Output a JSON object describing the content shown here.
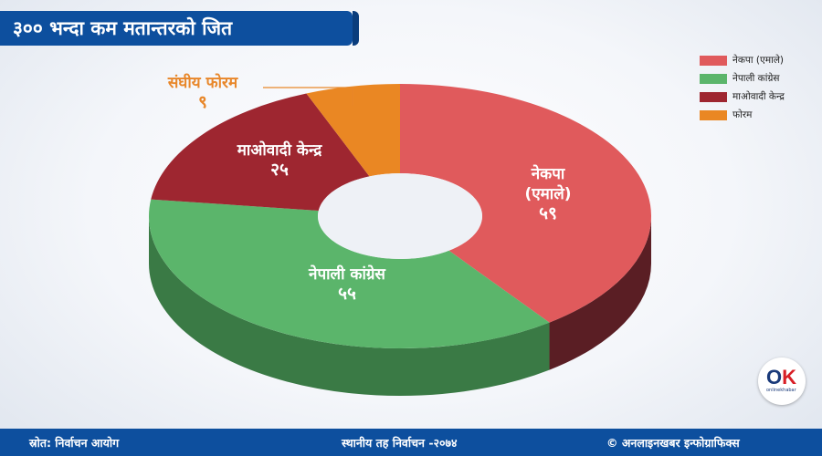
{
  "title": "३०० भन्दा कम मतान्तरको जित",
  "chart_data": {
    "type": "pie",
    "title": "३०० भन्दा कम मतान्तरको जित",
    "categories": [
      "नेकपा (एमाले)",
      "नेपाली कांग्रेस",
      "माओवादी केन्द्र",
      "फोरम"
    ],
    "series": [
      {
        "values": [
          59,
          55,
          25,
          9
        ],
        "value_labels": [
          "५९",
          "५५",
          "२५",
          "९"
        ]
      }
    ],
    "slice_labels": [
      {
        "lines": [
          "नेकपा",
          "(एमाले)"
        ],
        "value": "५९"
      },
      {
        "lines": [
          "नेपाली कांग्रेस"
        ],
        "value": "५५"
      },
      {
        "lines": [
          "माओवादी केन्द्र"
        ],
        "value": "२५"
      },
      {
        "lines": [
          "संघीय फोरम"
        ],
        "value": "९"
      }
    ],
    "colors": [
      "#e05a5c",
      "#5bb56b",
      "#9e2630",
      "#ea8723"
    ],
    "side_colors": [
      "#5a1e24",
      "#3a7a45",
      "#6d1a22",
      "#a55d14"
    ],
    "legend_position": "top-right",
    "style": "3d-donut"
  },
  "legend": [
    {
      "label": "नेकपा (एमाले)",
      "color": "#e05a5c"
    },
    {
      "label": "नेपाली कांग्रेस",
      "color": "#5bb56b"
    },
    {
      "label": "माओवादी केन्द्र",
      "color": "#9e2630"
    },
    {
      "label": "फोरम",
      "color": "#ea8723"
    }
  ],
  "footer": {
    "source": "स्रोत: निर्वाचन आयोग",
    "center": "स्थानीय तह निर्वाचन -२०७४",
    "credit": "© अनलाइनखबर इन्फोग्राफिक्स"
  },
  "logo": {
    "mark_o": "O",
    "mark_k": "K",
    "sub": "onlinekhabar"
  }
}
